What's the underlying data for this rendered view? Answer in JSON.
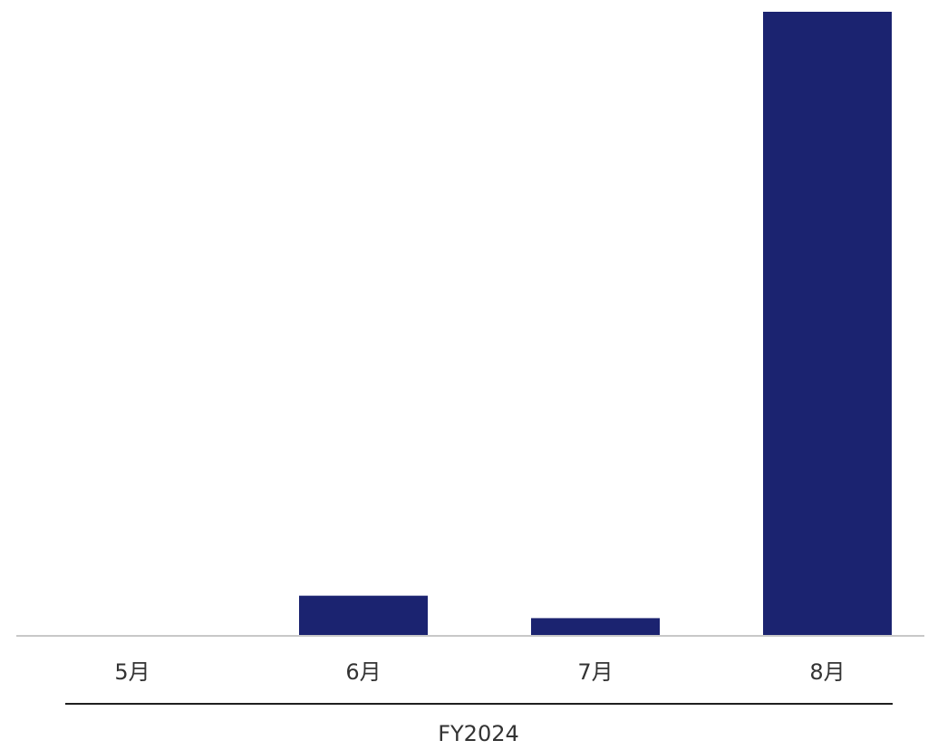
{
  "chart_data": {
    "type": "bar",
    "title": "",
    "xlabel": "",
    "ylabel": "",
    "categories": [
      "5月",
      "6月",
      "7月",
      "8月"
    ],
    "values": [
      0,
      6.3,
      2.7,
      100
    ],
    "ylim": [
      0,
      100
    ],
    "group_label": "FY2024",
    "bar_color": "#1b2370",
    "axis_color": "#c8c8c8",
    "group_line_color": "#1f1f1f",
    "text_color": "#333333",
    "grid": false,
    "legend": "none"
  }
}
